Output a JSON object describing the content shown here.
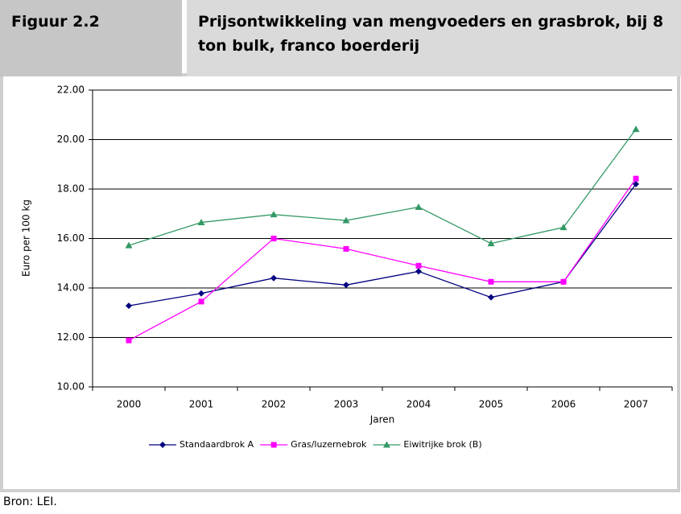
{
  "header": {
    "figure": "Figuur 2.2",
    "title": "Prijsontwikkeling van mengvoeders en grasbrok, bij 8 ton bulk, franco boerderij"
  },
  "chart_data": {
    "type": "line",
    "xlabel": "Jaren",
    "ylabel": "Euro per 100 kg",
    "categories": [
      "2000",
      "2001",
      "2002",
      "2003",
      "2004",
      "2005",
      "2006",
      "2007"
    ],
    "series": [
      {
        "name": "Standaardbrok A",
        "color": "#000080",
        "marker": "diamond",
        "values": [
          13.28,
          13.78,
          14.4,
          14.12,
          14.67,
          13.62,
          14.25,
          18.2
        ]
      },
      {
        "name": "Gras/luzernebrok",
        "color": "#ff00ff",
        "marker": "square",
        "values": [
          11.88,
          13.45,
          16.0,
          15.58,
          14.9,
          14.25,
          14.25,
          18.42
        ]
      },
      {
        "name": "Eiwitrijke brok (B)",
        "color": "#339966",
        "marker": "triangle",
        "values": [
          15.72,
          16.65,
          16.97,
          16.73,
          17.27,
          15.8,
          16.45,
          20.42
        ]
      }
    ],
    "ylim": [
      10,
      22
    ],
    "yticks": [
      {
        "value": 10,
        "label": "10.00"
      },
      {
        "value": 12,
        "label": "12.00"
      },
      {
        "value": 14,
        "label": "14.00"
      },
      {
        "value": 16,
        "label": "16.00"
      },
      {
        "value": 18,
        "label": "18.00"
      },
      {
        "value": 20,
        "label": "20.00"
      },
      {
        "value": 22,
        "label": "22.00"
      }
    ],
    "grid": true,
    "legend": "bottom"
  },
  "source": "Bron: LEI."
}
